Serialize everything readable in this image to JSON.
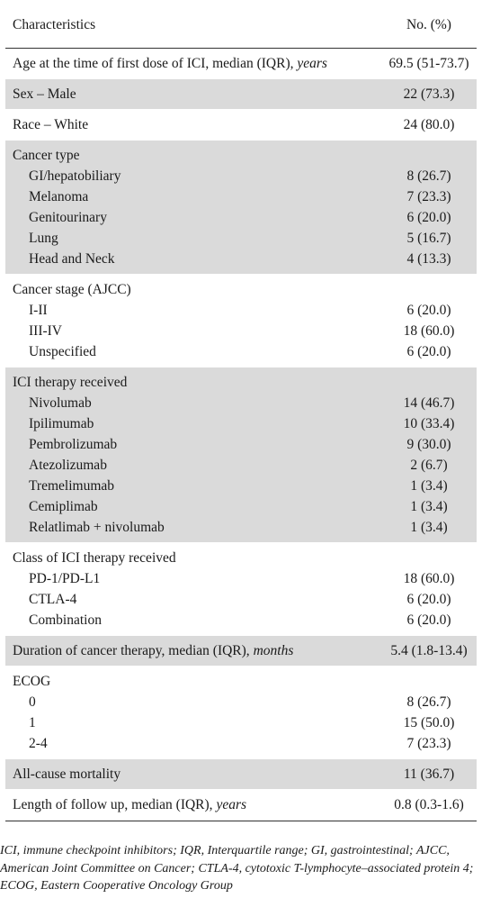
{
  "header": {
    "col1": "Characteristics",
    "col2": "No. (%)"
  },
  "rows": {
    "age": {
      "label": "Age at the time of first dose of ICI, median (IQR),",
      "unit": "years",
      "value": "69.5 (51-73.7)"
    },
    "sex": {
      "label": "Sex – Male",
      "value": "22 (73.3)"
    },
    "race": {
      "label": "Race – White",
      "value": "24 (80.0)"
    },
    "cancer_type": {
      "label": "Cancer type",
      "items": [
        {
          "label": "GI/hepatobiliary",
          "value": "8 (26.7)"
        },
        {
          "label": "Melanoma",
          "value": "7 (23.3)"
        },
        {
          "label": "Genitourinary",
          "value": "6 (20.0)"
        },
        {
          "label": "Lung",
          "value": "5 (16.7)"
        },
        {
          "label": "Head and Neck",
          "value": "4 (13.3)"
        }
      ]
    },
    "stage": {
      "label": "Cancer stage (AJCC)",
      "items": [
        {
          "label": "I-II",
          "value": "6 (20.0)"
        },
        {
          "label": "III-IV",
          "value": "18 (60.0)"
        },
        {
          "label": "Unspecified",
          "value": "6 (20.0)"
        }
      ]
    },
    "therapy": {
      "label": "ICI therapy received",
      "items": [
        {
          "label": "Nivolumab",
          "value": "14 (46.7)"
        },
        {
          "label": "Ipilimumab",
          "value": "10 (33.4)"
        },
        {
          "label": "Pembrolizumab",
          "value": "9 (30.0)"
        },
        {
          "label": "Atezolizumab",
          "value": "2 (6.7)"
        },
        {
          "label": "Tremelimumab",
          "value": "1 (3.4)"
        },
        {
          "label": "Cemiplimab",
          "value": "1 (3.4)"
        },
        {
          "label": "Relatlimab + nivolumab",
          "value": "1 (3.4)"
        }
      ]
    },
    "class": {
      "label": "Class of ICI therapy received",
      "items": [
        {
          "label": "PD-1/PD-L1",
          "value": "18 (60.0)"
        },
        {
          "label": "CTLA-4",
          "value": "6 (20.0)"
        },
        {
          "label": "Combination",
          "value": "6 (20.0)"
        }
      ]
    },
    "duration": {
      "label": "Duration of cancer therapy, median (IQR),",
      "unit": "months",
      "value": "5.4 (1.8-13.4)"
    },
    "ecog": {
      "label": "ECOG",
      "items": [
        {
          "label": "0",
          "value": "8 (26.7)"
        },
        {
          "label": "1",
          "value": "15 (50.0)"
        },
        {
          "label": "2-4",
          "value": "7 (23.3)"
        }
      ]
    },
    "mortality": {
      "label": "All-cause mortality",
      "value": "11 (36.7)"
    },
    "followup": {
      "label": "Length of follow up, median (IQR),",
      "unit": "years",
      "value": "0.8 (0.3-1.6)"
    }
  },
  "footnote": "ICI, immune checkpoint inhibitors; IQR, Interquartile range; GI, gastrointestinal; AJCC, American Joint Committee on Cancer; CTLA-4, cytotoxic T-lymphocyte–associated protein 4; ECOG, Eastern Cooperative Oncology Group"
}
